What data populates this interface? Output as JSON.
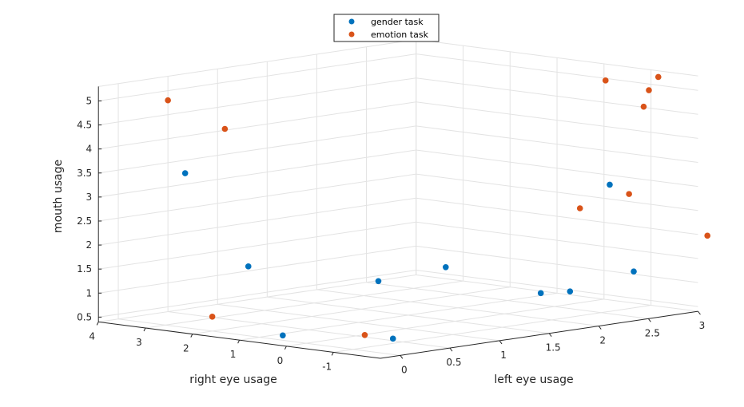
{
  "chart_data": {
    "type": "scatter",
    "title": "",
    "xlabel": "left eye usage",
    "ylabel": "right eye usage",
    "zlabel": "mouth usage",
    "xlim": [
      -0.2,
      3
    ],
    "ylim": [
      -2,
      4
    ],
    "zlim": [
      0.4,
      5.3
    ],
    "x_ticks": [
      "0",
      "0.5",
      "1",
      "1.5",
      "2",
      "2.5",
      "3"
    ],
    "y_ticks": [
      "-1",
      "0",
      "1",
      "2",
      "3",
      "4"
    ],
    "z_ticks": [
      "0.5",
      "1",
      "1.5",
      "2",
      "2.5",
      "3",
      "3.5",
      "4",
      "4.5",
      "5"
    ],
    "grid": true,
    "legend_position": "top-center",
    "series": [
      {
        "name": "gender task",
        "color": "#0072BD",
        "points": [
          {
            "x": 0.2,
            "y": 3.0,
            "z": 3.5
          },
          {
            "x": 0.6,
            "y": 2.5,
            "z": 1.5
          },
          {
            "x": 1.2,
            "y": 1.0,
            "z": 1.2
          },
          {
            "x": 1.5,
            "y": 0.2,
            "z": 1.5
          },
          {
            "x": 0.0,
            "y": 0.5,
            "z": 0.5
          },
          {
            "x": 0.4,
            "y": -1.0,
            "z": 0.5
          },
          {
            "x": 2.3,
            "y": -1.6,
            "z": 3.2
          },
          {
            "x": 1.7,
            "y": -1.4,
            "z": 1.1
          },
          {
            "x": 1.9,
            "y": -1.6,
            "z": 1.1
          },
          {
            "x": 2.4,
            "y": -1.9,
            "z": 1.4
          }
        ]
      },
      {
        "name": "emotion task",
        "color": "#D95319",
        "points": [
          {
            "x": 0.5,
            "y": 4.0,
            "z": 4.8
          },
          {
            "x": 0.6,
            "y": 3.0,
            "z": 4.3
          },
          {
            "x": 0.0,
            "y": 2.0,
            "z": 0.7
          },
          {
            "x": 0.4,
            "y": -0.4,
            "z": 0.5
          },
          {
            "x": 2.4,
            "y": -1.3,
            "z": 5.3
          },
          {
            "x": 2.6,
            "y": -1.8,
            "z": 5.1
          },
          {
            "x": 2.5,
            "y": -1.9,
            "z": 4.8
          },
          {
            "x": 2.6,
            "y": -2.0,
            "z": 5.4
          },
          {
            "x": 2.0,
            "y": -1.6,
            "z": 2.8
          },
          {
            "x": 2.4,
            "y": -1.8,
            "z": 3.0
          },
          {
            "x": 3.0,
            "y": -2.2,
            "z": 2.0
          }
        ]
      }
    ]
  }
}
